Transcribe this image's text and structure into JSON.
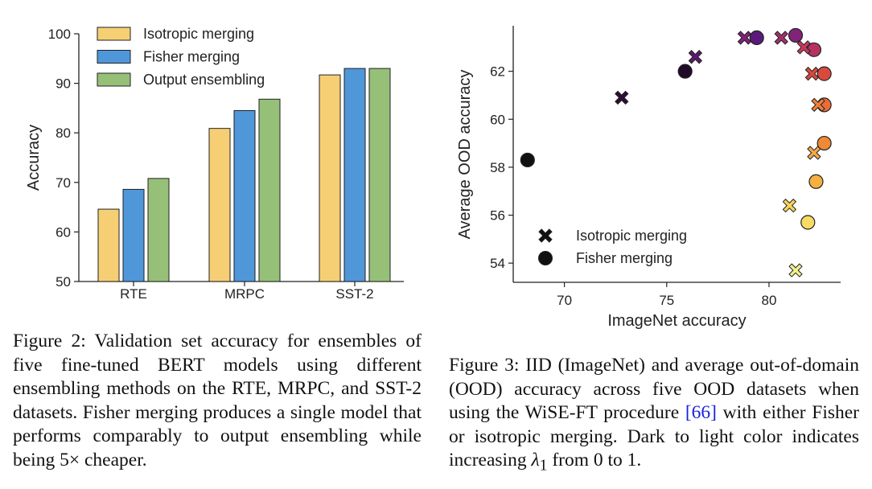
{
  "colors": {
    "isotropic": "#f6cf75",
    "fisher": "#4f97d9",
    "output": "#96c078",
    "edge": "#222222",
    "ref_link": "#1a22e0"
  },
  "chart_data": [
    {
      "type": "bar",
      "ylabel": "Accuracy",
      "xlabel": "",
      "ylim": [
        50,
        100
      ],
      "yticks": [
        "50",
        "60",
        "70",
        "80",
        "90",
        "100"
      ],
      "categories": [
        "RTE",
        "MRPC",
        "SST-2"
      ],
      "series": [
        {
          "name": "Isotropic merging",
          "color": "#f6cf75",
          "values": [
            64.6,
            80.9,
            91.7
          ]
        },
        {
          "name": "Fisher merging",
          "color": "#4f97d9",
          "values": [
            68.6,
            84.5,
            93.0
          ]
        },
        {
          "name": "Output ensembling",
          "color": "#96c078",
          "values": [
            70.8,
            86.8,
            93.0
          ]
        }
      ],
      "legend_position": "top-left",
      "grid": false
    },
    {
      "type": "scatter",
      "xlabel": "ImageNet accuracy",
      "ylabel": "Average OOD accuracy",
      "xlim": [
        67.5,
        83.5
      ],
      "ylim": [
        53.2,
        63.9
      ],
      "xticks": [
        "70",
        "75",
        "80"
      ],
      "yticks": [
        "54",
        "56",
        "58",
        "60",
        "62"
      ],
      "color_scale": "lambda_1 from 0 (dark purple) to 1 (light yellow)",
      "series": [
        {
          "name": "Isotropic merging",
          "marker": "x",
          "points": [
            {
              "x": 81.3,
              "y": 53.7,
              "color": "#f2f08e"
            },
            {
              "x": 81.0,
              "y": 56.4,
              "color": "#f8d45c"
            },
            {
              "x": 82.2,
              "y": 58.6,
              "color": "#f4a84a"
            },
            {
              "x": 82.4,
              "y": 60.6,
              "color": "#ee7f38"
            },
            {
              "x": 82.1,
              "y": 61.9,
              "color": "#d9483c"
            },
            {
              "x": 81.7,
              "y": 63.0,
              "color": "#c53a5a"
            },
            {
              "x": 80.6,
              "y": 63.4,
              "color": "#a0326b"
            },
            {
              "x": 78.8,
              "y": 63.4,
              "color": "#7e2276"
            },
            {
              "x": 76.4,
              "y": 62.6,
              "color": "#5b1a6b"
            },
            {
              "x": 72.8,
              "y": 60.9,
              "color": "#2c0d36"
            }
          ]
        },
        {
          "name": "Fisher merging",
          "marker": "o",
          "points": [
            {
              "x": 68.2,
              "y": 58.3,
              "color": "#111111"
            },
            {
              "x": 75.9,
              "y": 62.0,
              "color": "#200a28"
            },
            {
              "x": 79.4,
              "y": 63.4,
              "color": "#5b1a7b"
            },
            {
              "x": 81.3,
              "y": 63.5,
              "color": "#82237a"
            },
            {
              "x": 82.2,
              "y": 62.9,
              "color": "#b43162"
            },
            {
              "x": 82.7,
              "y": 61.9,
              "color": "#d94a3e"
            },
            {
              "x": 82.7,
              "y": 60.6,
              "color": "#eb6b3a"
            },
            {
              "x": 82.7,
              "y": 59.0,
              "color": "#ee8a35"
            },
            {
              "x": 82.3,
              "y": 57.4,
              "color": "#f6b040"
            },
            {
              "x": 81.9,
              "y": 55.7,
              "color": "#f8db62"
            }
          ]
        }
      ],
      "legend_position": "lower-left",
      "grid": false
    }
  ],
  "captions": {
    "fig2": "Figure 2: Validation set accuracy for ensembles of five fine-tuned BERT models using different ensembling methods on the RTE, MRPC, and SST-2 datasets. Fisher merging produces a single model that performs comparably to output ensembling while being ",
    "fig2_factor": "5×",
    "fig2_end": " cheaper.",
    "fig3_a": "Figure 3: IID (ImageNet) and average out-of-domain (OOD) accuracy across five OOD datasets when using the WiSE-FT procedure ",
    "fig3_ref": "[66]",
    "fig3_b": " with either Fisher or isotropic merging. Dark to light color indicates increasing ",
    "fig3_lambda": "λ",
    "fig3_sub": "1",
    "fig3_c": " from 0 to 1."
  }
}
